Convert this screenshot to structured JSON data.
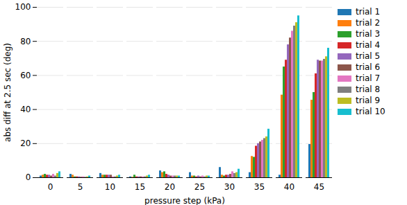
{
  "chart_data": {
    "type": "bar",
    "x_label": "pressure step (kPa)",
    "y_label": "abs diff at 2.5 sec (deg)",
    "categories": [
      0,
      5,
      10,
      15,
      20,
      25,
      30,
      35,
      40,
      45
    ],
    "series": [
      {
        "name": "trial 1",
        "color": "#1f77b4",
        "values": [
          1,
          2,
          2.5,
          0.5,
          4,
          3,
          6,
          3,
          1.5,
          19.5
        ]
      },
      {
        "name": "trial 2",
        "color": "#ff7f0e",
        "values": [
          1.5,
          1.5,
          1.5,
          0.3,
          3,
          1,
          1.5,
          12.5,
          48.5,
          45.5
        ]
      },
      {
        "name": "trial 3",
        "color": "#2ca02c",
        "values": [
          2,
          0.5,
          1.5,
          1.5,
          3.5,
          1,
          1,
          12,
          65,
          50
        ]
      },
      {
        "name": "trial 4",
        "color": "#d62728",
        "values": [
          1.5,
          0.5,
          1.5,
          0.5,
          2,
          0.5,
          1.5,
          18.5,
          69,
          61
        ]
      },
      {
        "name": "trial 5",
        "color": "#9467bd",
        "values": [
          1.5,
          0.5,
          1.5,
          0.5,
          1.5,
          1,
          1.5,
          20,
          78,
          69
        ]
      },
      {
        "name": "trial 6",
        "color": "#8c564b",
        "values": [
          1,
          0.3,
          1.5,
          0.5,
          1,
          0.5,
          2,
          21,
          82,
          68.5
        ]
      },
      {
        "name": "trial 7",
        "color": "#e377c2",
        "values": [
          2,
          0.5,
          0.5,
          0.5,
          1,
          1,
          3.5,
          22,
          86,
          68.5
        ]
      },
      {
        "name": "trial 8",
        "color": "#7f7f7f",
        "values": [
          1,
          0.3,
          0.5,
          0.5,
          1,
          0.5,
          2.5,
          23,
          89,
          69.5
        ]
      },
      {
        "name": "trial 9",
        "color": "#bcbd22",
        "values": [
          2.5,
          0.5,
          1,
          1,
          1,
          1,
          3,
          24,
          91,
          71
        ]
      },
      {
        "name": "trial 10",
        "color": "#17becf",
        "values": [
          3.5,
          1,
          1.5,
          1.5,
          1,
          1,
          5,
          28.5,
          95,
          76
        ]
      }
    ],
    "ylim": [
      0,
      100
    ],
    "yticks": [
      0,
      20,
      40,
      60,
      80,
      100
    ],
    "grid": true,
    "legend": "upper left"
  }
}
